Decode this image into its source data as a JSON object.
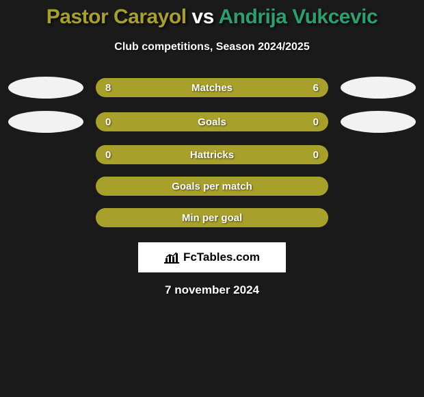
{
  "title": {
    "player1": "Pastor Carayol",
    "vs": "vs",
    "player2": "Andrija Vukcevic",
    "color1": "#a7a02a",
    "color_vs": "#ffffff",
    "color2": "#2aa06e"
  },
  "subtitle": "Club competitions, Season 2024/2025",
  "rows": [
    {
      "label": "Matches",
      "left": "8",
      "right": "6",
      "bar_color": "#a7a02a",
      "left_oval": true,
      "right_oval": true
    },
    {
      "label": "Goals",
      "left": "0",
      "right": "0",
      "bar_color": "#a7a02a",
      "left_oval": true,
      "right_oval": true
    },
    {
      "label": "Hattricks",
      "left": "0",
      "right": "0",
      "bar_color": "#a7a02a",
      "left_oval": false,
      "right_oval": false
    },
    {
      "label": "Goals per match",
      "left": "",
      "right": "",
      "bar_color": "#a7a02a",
      "left_oval": false,
      "right_oval": false
    },
    {
      "label": "Min per goal",
      "left": "",
      "right": "",
      "bar_color": "#a7a02a",
      "left_oval": false,
      "right_oval": false
    }
  ],
  "logo_text": "FcTables.com",
  "date": "7 november 2024",
  "background": "#1a1a1a",
  "oval_color": "#f2f2f2"
}
